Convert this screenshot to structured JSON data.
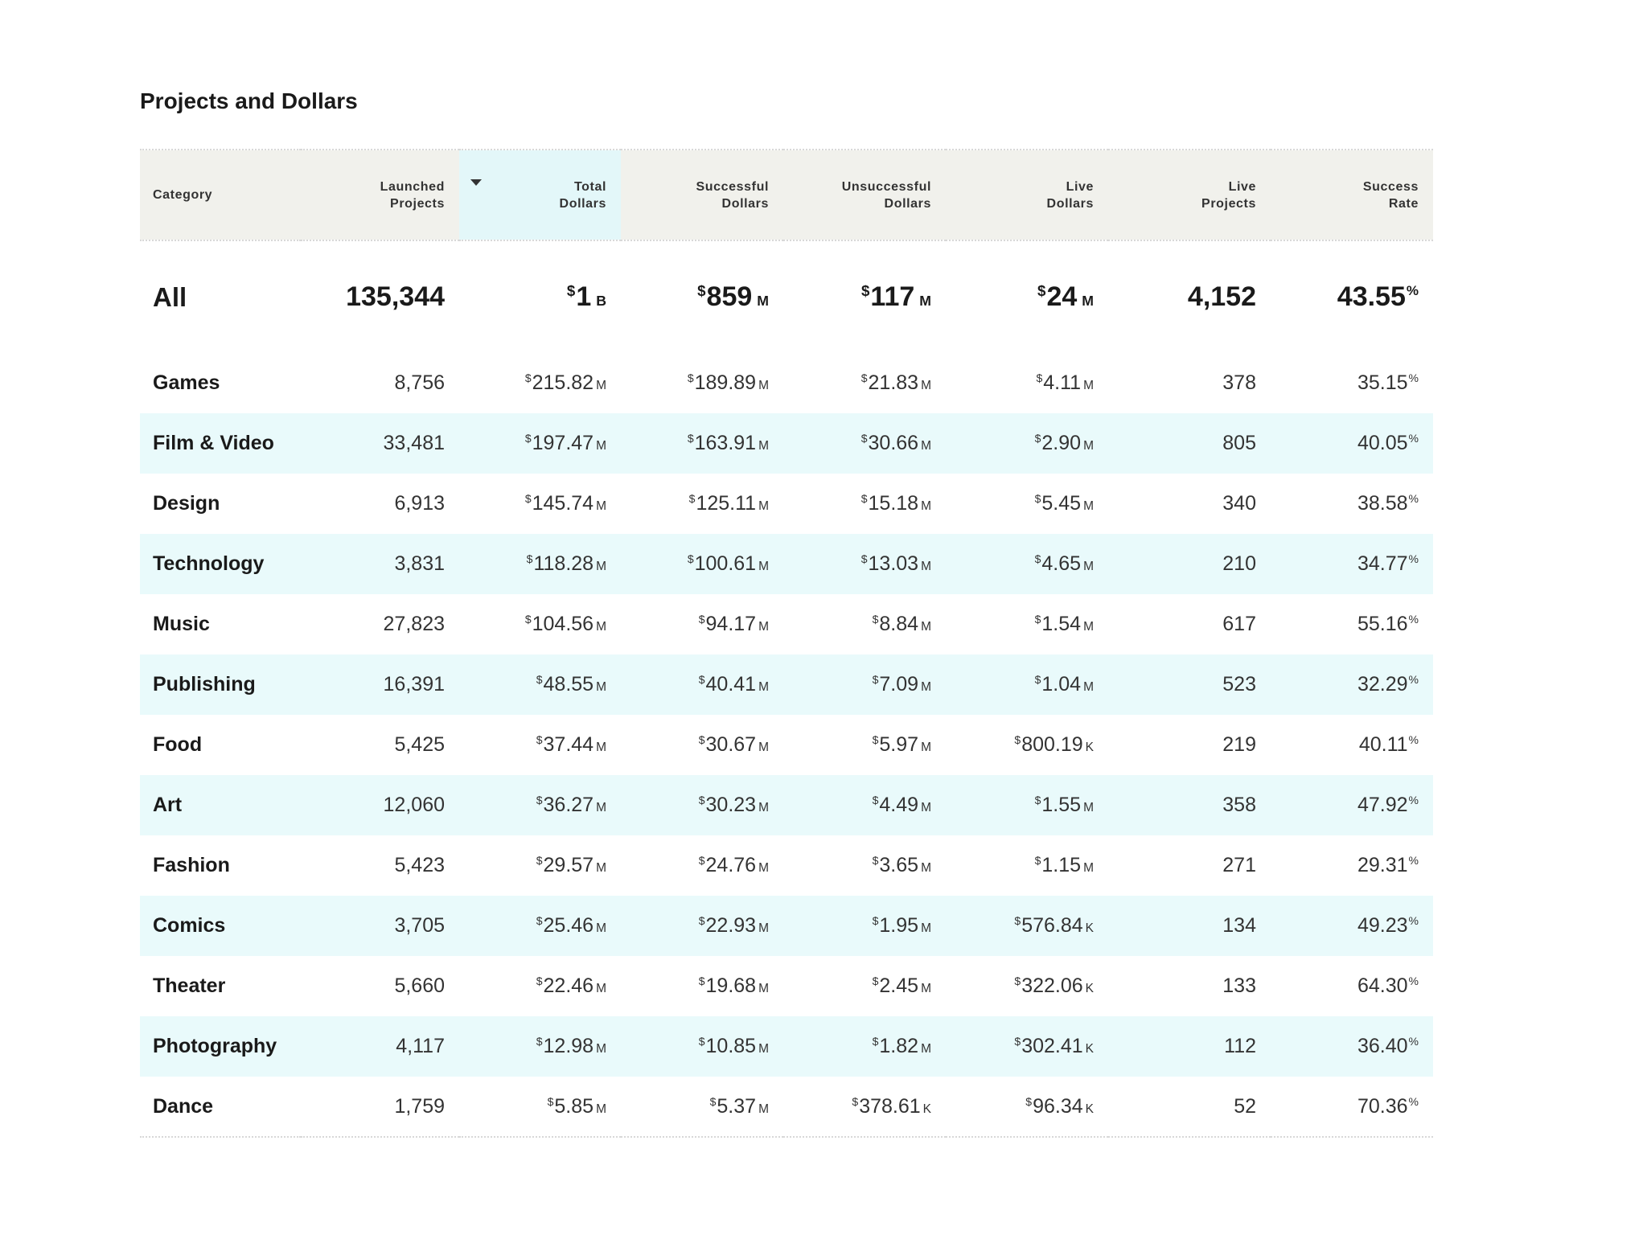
{
  "page": {
    "title": "Projects and Dollars"
  },
  "table": {
    "headers": [
      [
        "Category"
      ],
      [
        "Launched",
        "Projects"
      ],
      [
        "Total",
        "Dollars"
      ],
      [
        "Successful",
        "Dollars"
      ],
      [
        "Unsuccessful",
        "Dollars"
      ],
      [
        "Live",
        "Dollars"
      ],
      [
        "Live",
        "Projects"
      ],
      [
        "Success",
        "Rate"
      ]
    ],
    "sorted_column_index": 2,
    "sort_icon": "caret-down-icon",
    "total": {
      "category": "All",
      "launched_projects": "135,344",
      "total_dollars": {
        "value": "1",
        "unit": "B"
      },
      "successful_dollars": {
        "value": "859",
        "unit": "M"
      },
      "unsuccessful_dollars": {
        "value": "117",
        "unit": "M"
      },
      "live_dollars": {
        "value": "24",
        "unit": "M"
      },
      "live_projects": "4,152",
      "success_rate": "43.55"
    },
    "rows": [
      {
        "category": "Games",
        "launched_projects": "8,756",
        "total_dollars": {
          "value": "215.82",
          "unit": "M"
        },
        "successful_dollars": {
          "value": "189.89",
          "unit": "M"
        },
        "unsuccessful_dollars": {
          "value": "21.83",
          "unit": "M"
        },
        "live_dollars": {
          "value": "4.11",
          "unit": "M"
        },
        "live_projects": "378",
        "success_rate": "35.15"
      },
      {
        "category": "Film & Video",
        "launched_projects": "33,481",
        "total_dollars": {
          "value": "197.47",
          "unit": "M"
        },
        "successful_dollars": {
          "value": "163.91",
          "unit": "M"
        },
        "unsuccessful_dollars": {
          "value": "30.66",
          "unit": "M"
        },
        "live_dollars": {
          "value": "2.90",
          "unit": "M"
        },
        "live_projects": "805",
        "success_rate": "40.05"
      },
      {
        "category": "Design",
        "launched_projects": "6,913",
        "total_dollars": {
          "value": "145.74",
          "unit": "M"
        },
        "successful_dollars": {
          "value": "125.11",
          "unit": "M"
        },
        "unsuccessful_dollars": {
          "value": "15.18",
          "unit": "M"
        },
        "live_dollars": {
          "value": "5.45",
          "unit": "M"
        },
        "live_projects": "340",
        "success_rate": "38.58"
      },
      {
        "category": "Technology",
        "launched_projects": "3,831",
        "total_dollars": {
          "value": "118.28",
          "unit": "M"
        },
        "successful_dollars": {
          "value": "100.61",
          "unit": "M"
        },
        "unsuccessful_dollars": {
          "value": "13.03",
          "unit": "M"
        },
        "live_dollars": {
          "value": "4.65",
          "unit": "M"
        },
        "live_projects": "210",
        "success_rate": "34.77"
      },
      {
        "category": "Music",
        "launched_projects": "27,823",
        "total_dollars": {
          "value": "104.56",
          "unit": "M"
        },
        "successful_dollars": {
          "value": "94.17",
          "unit": "M"
        },
        "unsuccessful_dollars": {
          "value": "8.84",
          "unit": "M"
        },
        "live_dollars": {
          "value": "1.54",
          "unit": "M"
        },
        "live_projects": "617",
        "success_rate": "55.16"
      },
      {
        "category": "Publishing",
        "launched_projects": "16,391",
        "total_dollars": {
          "value": "48.55",
          "unit": "M"
        },
        "successful_dollars": {
          "value": "40.41",
          "unit": "M"
        },
        "unsuccessful_dollars": {
          "value": "7.09",
          "unit": "M"
        },
        "live_dollars": {
          "value": "1.04",
          "unit": "M"
        },
        "live_projects": "523",
        "success_rate": "32.29"
      },
      {
        "category": "Food",
        "launched_projects": "5,425",
        "total_dollars": {
          "value": "37.44",
          "unit": "M"
        },
        "successful_dollars": {
          "value": "30.67",
          "unit": "M"
        },
        "unsuccessful_dollars": {
          "value": "5.97",
          "unit": "M"
        },
        "live_dollars": {
          "value": "800.19",
          "unit": "K"
        },
        "live_projects": "219",
        "success_rate": "40.11"
      },
      {
        "category": "Art",
        "launched_projects": "12,060",
        "total_dollars": {
          "value": "36.27",
          "unit": "M"
        },
        "successful_dollars": {
          "value": "30.23",
          "unit": "M"
        },
        "unsuccessful_dollars": {
          "value": "4.49",
          "unit": "M"
        },
        "live_dollars": {
          "value": "1.55",
          "unit": "M"
        },
        "live_projects": "358",
        "success_rate": "47.92"
      },
      {
        "category": "Fashion",
        "launched_projects": "5,423",
        "total_dollars": {
          "value": "29.57",
          "unit": "M"
        },
        "successful_dollars": {
          "value": "24.76",
          "unit": "M"
        },
        "unsuccessful_dollars": {
          "value": "3.65",
          "unit": "M"
        },
        "live_dollars": {
          "value": "1.15",
          "unit": "M"
        },
        "live_projects": "271",
        "success_rate": "29.31"
      },
      {
        "category": "Comics",
        "launched_projects": "3,705",
        "total_dollars": {
          "value": "25.46",
          "unit": "M"
        },
        "successful_dollars": {
          "value": "22.93",
          "unit": "M"
        },
        "unsuccessful_dollars": {
          "value": "1.95",
          "unit": "M"
        },
        "live_dollars": {
          "value": "576.84",
          "unit": "K"
        },
        "live_projects": "134",
        "success_rate": "49.23"
      },
      {
        "category": "Theater",
        "launched_projects": "5,660",
        "total_dollars": {
          "value": "22.46",
          "unit": "M"
        },
        "successful_dollars": {
          "value": "19.68",
          "unit": "M"
        },
        "unsuccessful_dollars": {
          "value": "2.45",
          "unit": "M"
        },
        "live_dollars": {
          "value": "322.06",
          "unit": "K"
        },
        "live_projects": "133",
        "success_rate": "64.30"
      },
      {
        "category": "Photography",
        "launched_projects": "4,117",
        "total_dollars": {
          "value": "12.98",
          "unit": "M"
        },
        "successful_dollars": {
          "value": "10.85",
          "unit": "M"
        },
        "unsuccessful_dollars": {
          "value": "1.82",
          "unit": "M"
        },
        "live_dollars": {
          "value": "302.41",
          "unit": "K"
        },
        "live_projects": "112",
        "success_rate": "36.40"
      },
      {
        "category": "Dance",
        "launched_projects": "1,759",
        "total_dollars": {
          "value": "5.85",
          "unit": "M"
        },
        "successful_dollars": {
          "value": "5.37",
          "unit": "M"
        },
        "unsuccessful_dollars": {
          "value": "378.61",
          "unit": "K"
        },
        "live_dollars": {
          "value": "96.34",
          "unit": "K"
        },
        "live_projects": "52",
        "success_rate": "70.36"
      }
    ],
    "currency_symbol": "$",
    "percent_symbol": "%"
  }
}
